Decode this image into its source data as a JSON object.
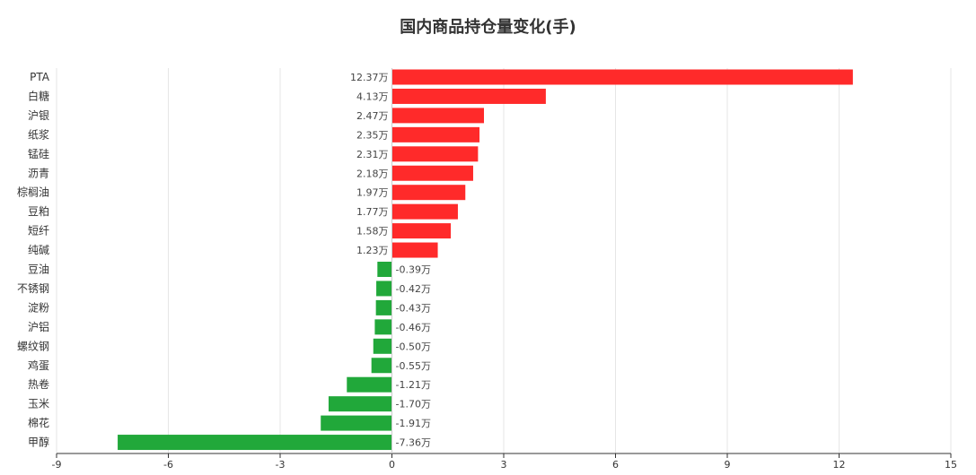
{
  "chart_data": {
    "type": "bar",
    "orientation": "horizontal",
    "title": "国内商品持仓量变化(手)",
    "categories": [
      "PTA",
      "白糖",
      "沪银",
      "纸浆",
      "锰硅",
      "沥青",
      "棕榈油",
      "豆粕",
      "短纤",
      "纯碱",
      "豆油",
      "不锈钢",
      "淀粉",
      "沪铝",
      "螺纹钢",
      "鸡蛋",
      "热卷",
      "玉米",
      "棉花",
      "甲醇"
    ],
    "values": [
      12.37,
      4.13,
      2.47,
      2.35,
      2.31,
      2.18,
      1.97,
      1.77,
      1.58,
      1.23,
      -0.39,
      -0.42,
      -0.43,
      -0.46,
      -0.5,
      -0.55,
      -1.21,
      -1.7,
      -1.91,
      -7.36
    ],
    "data_labels": [
      "12.37万",
      "4.13万",
      "2.47万",
      "2.35万",
      "2.31万",
      "2.18万",
      "1.97万",
      "1.77万",
      "1.58万",
      "1.23万",
      "-0.39万",
      "-0.42万",
      "-0.43万",
      "-0.46万",
      "-0.50万",
      "-0.55万",
      "-1.21万",
      "-1.70万",
      "-1.91万",
      "-7.36万"
    ],
    "xlim": [
      -9,
      15
    ],
    "xticks": [
      -9,
      -6,
      -3,
      0,
      3,
      6,
      9,
      12,
      15
    ],
    "grid": true,
    "colors": {
      "positive": "#ff2a2a",
      "negative": "#21a83a",
      "grid": "#e6e6e6",
      "axis": "#333333"
    }
  }
}
